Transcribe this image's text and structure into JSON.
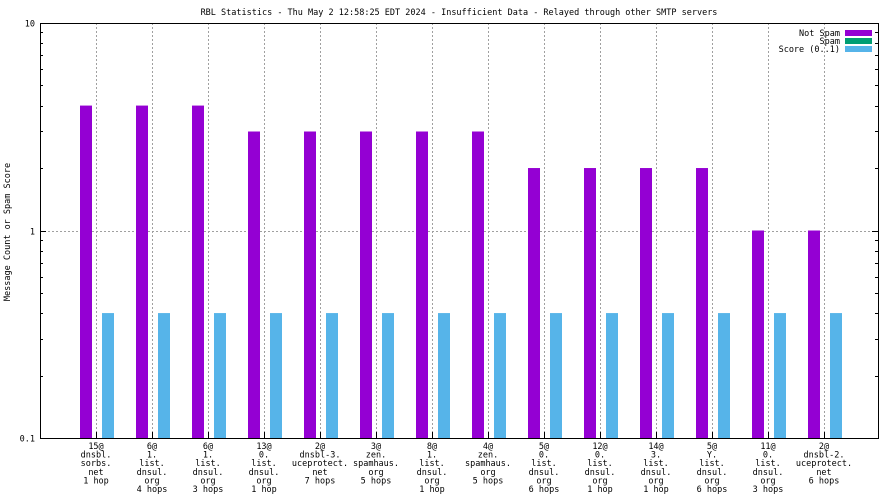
{
  "chart_data": {
    "type": "bar",
    "title": "RBL Statistics - Thu May  2 12:58:25 EDT 2024 - Insufficient Data - Relayed through other SMTP servers",
    "ylabel": "Message Count or Spam Score",
    "xlabel": "",
    "yscale": "log",
    "ylim": [
      0.1,
      10
    ],
    "yticks": [
      "0.1",
      "1",
      "10"
    ],
    "ytick_values": [
      0.1,
      1,
      10
    ],
    "grid": true,
    "legend_position": "top-right",
    "categories": [
      [
        "15@",
        "dnsbl.",
        "sorbs.",
        "net",
        "1 hop"
      ],
      [
        "6@",
        "1.",
        "list.",
        "dnsul.",
        "org",
        "4 hops"
      ],
      [
        "6@",
        "1.",
        "list.",
        "dnsul.",
        "org",
        "3 hops"
      ],
      [
        "13@",
        "0.",
        "list.",
        "dnsul.",
        "org",
        "1 hop"
      ],
      [
        "2@",
        "dnsbl-3.",
        "uceprotect.",
        "net",
        "7 hops"
      ],
      [
        "3@",
        "zen.",
        "spamhaus.",
        "org",
        "5 hops"
      ],
      [
        "8@",
        "1.",
        "list.",
        "dnsul.",
        "org",
        "1 hop"
      ],
      [
        "4@",
        "zen.",
        "spamhaus.",
        "org",
        "5 hops"
      ],
      [
        "5@",
        "0.",
        "list.",
        "dnsul.",
        "org",
        "6 hops"
      ],
      [
        "12@",
        "0.",
        "list.",
        "dnsul.",
        "org",
        "1 hop"
      ],
      [
        "14@",
        "3.",
        "list.",
        "dnsul.",
        "org",
        "1 hop"
      ],
      [
        "5@",
        "Y.",
        "list.",
        "dnsul.",
        "org",
        "6 hops"
      ],
      [
        "11@",
        "0.",
        "list.",
        "dnsul.",
        "org",
        "3 hops"
      ],
      [
        "2@",
        "dnsbl-2.",
        "uceprotect.",
        "net",
        "6 hops"
      ]
    ],
    "series": [
      {
        "name": "Not Spam",
        "color": "#9400d3",
        "values": [
          4,
          4,
          4,
          3,
          3,
          3,
          3,
          3,
          2,
          2,
          2,
          2,
          1,
          1
        ]
      },
      {
        "name": "Spam",
        "color": "#009e73",
        "values": [
          0,
          0,
          0,
          0,
          0,
          0,
          0,
          0,
          0,
          0,
          0,
          0,
          0,
          0
        ]
      },
      {
        "name": "Score (0..1)",
        "color": "#56b4e9",
        "values": [
          0.4,
          0.4,
          0.4,
          0.4,
          0.4,
          0.4,
          0.4,
          0.4,
          0.4,
          0.4,
          0.4,
          0.4,
          0.4,
          0.4
        ]
      }
    ]
  }
}
